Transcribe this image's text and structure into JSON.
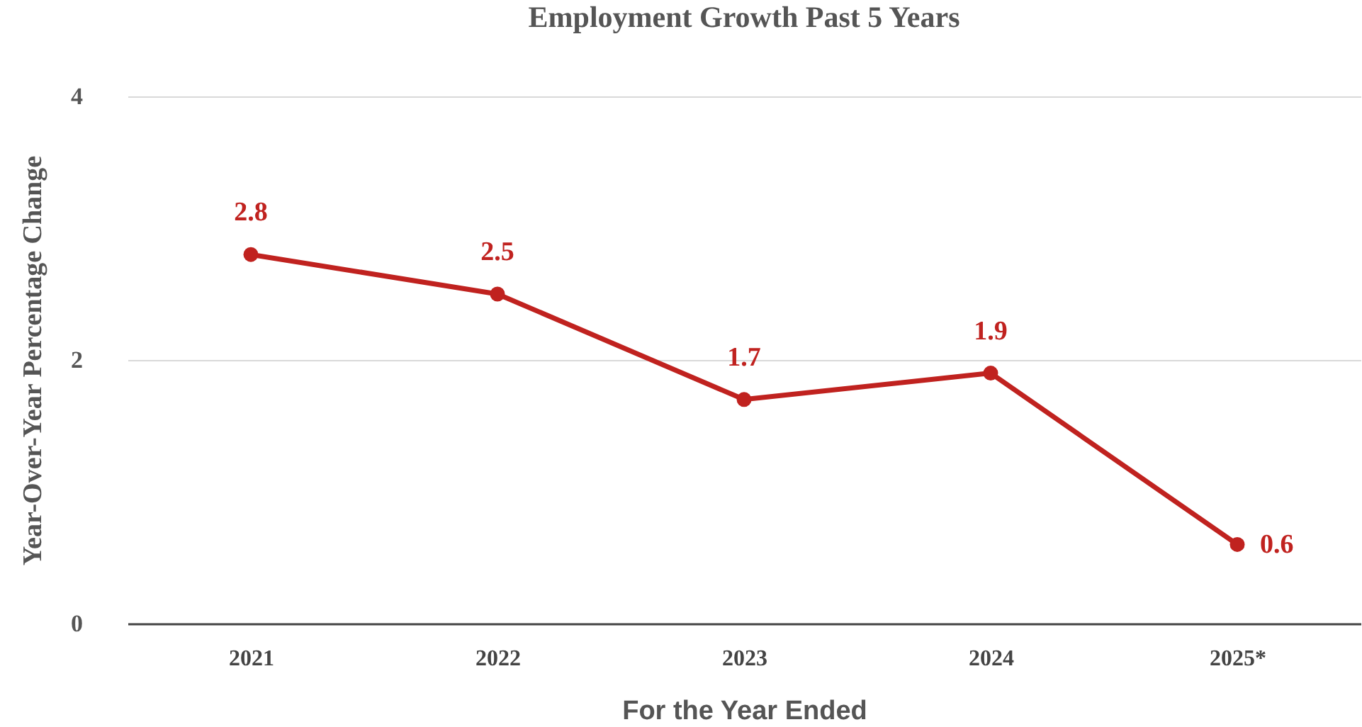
{
  "chart_data": {
    "type": "line",
    "title": "Employment Growth Past 5 Years",
    "xlabel": "For the Year Ended",
    "ylabel": "Year-Over-Year Percentage Change",
    "categories": [
      "2021",
      "2022",
      "2023",
      "2024",
      "2025*"
    ],
    "series": [
      {
        "color": "#c0221f",
        "values": [
          2.8,
          2.5,
          1.7,
          1.9,
          0.6
        ]
      }
    ],
    "ylim": [
      0,
      4
    ],
    "yticks": [
      0,
      2,
      4
    ],
    "grid": "y",
    "marker": "circle",
    "line_style": "solid",
    "data_labels": true,
    "legend": false
  }
}
